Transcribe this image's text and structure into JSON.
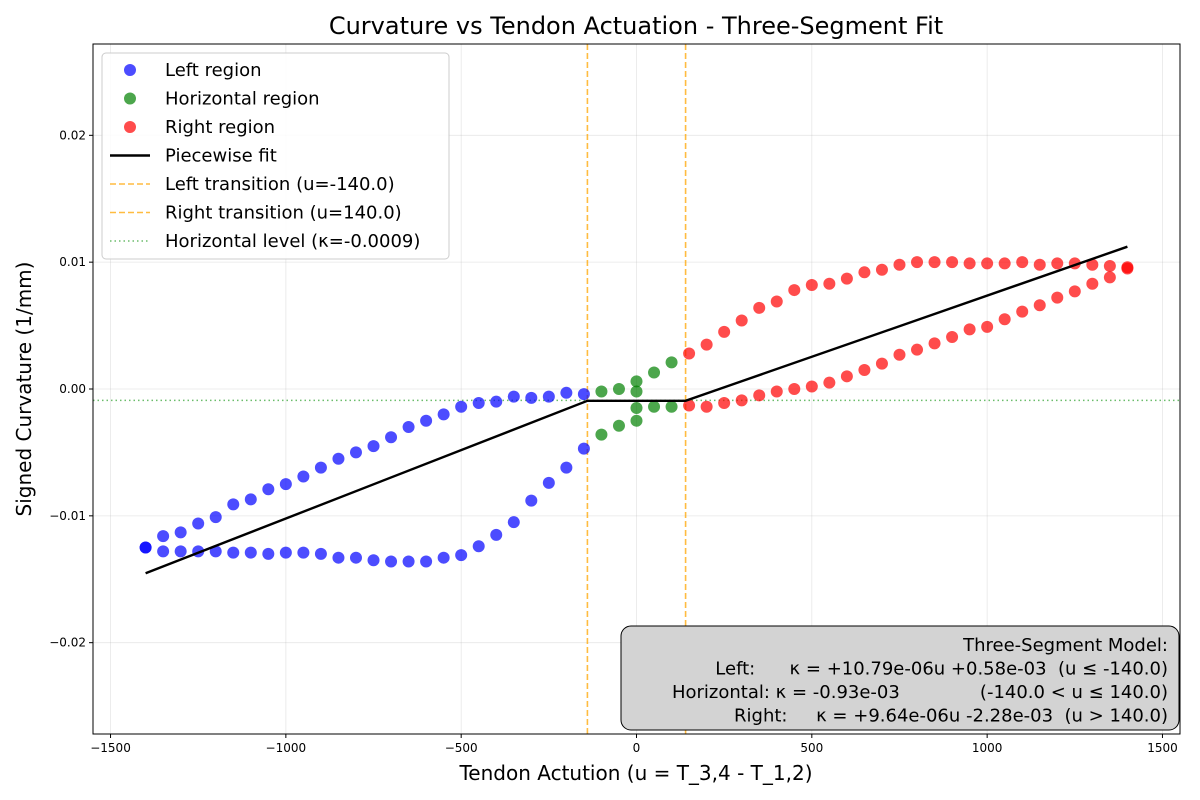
{
  "chart_data": {
    "type": "scatter",
    "title": "Curvature vs Tendon Actuation - Three-Segment Fit",
    "xlabel": "Tendon Actution (u = T_3,4 - T_1,2)",
    "ylabel": "Signed Curvature (1/mm)",
    "xlim": [
      -1550,
      1550
    ],
    "ylim": [
      -0.0272,
      0.0272
    ],
    "x_ticks": [
      -1500,
      -1000,
      -500,
      0,
      500,
      1000,
      1500
    ],
    "x_tick_labels": [
      "−1500",
      "−1000",
      "−500",
      "0",
      "500",
      "1000",
      "1500"
    ],
    "y_ticks": [
      -0.02,
      -0.01,
      0.0,
      0.01,
      0.02
    ],
    "y_tick_labels": [
      "−0.02",
      "−0.01",
      "0.00",
      "0.01",
      "0.02"
    ],
    "grid": true,
    "legend_position": "top-left",
    "series": [
      {
        "name": "Left region",
        "color": "#0000ff",
        "points": [
          [
            -1400,
            -0.0125
          ],
          [
            -1350,
            -0.0116
          ],
          [
            -1300,
            -0.0113
          ],
          [
            -1250,
            -0.0106
          ],
          [
            -1200,
            -0.0101
          ],
          [
            -1150,
            -0.0091
          ],
          [
            -1100,
            -0.0087
          ],
          [
            -1050,
            -0.0079
          ],
          [
            -1000,
            -0.0075
          ],
          [
            -950,
            -0.0069
          ],
          [
            -900,
            -0.0062
          ],
          [
            -850,
            -0.0055
          ],
          [
            -800,
            -0.005
          ],
          [
            -750,
            -0.0045
          ],
          [
            -700,
            -0.0038
          ],
          [
            -650,
            -0.003
          ],
          [
            -600,
            -0.0025
          ],
          [
            -550,
            -0.002
          ],
          [
            -500,
            -0.0014
          ],
          [
            -450,
            -0.0011
          ],
          [
            -400,
            -0.001
          ],
          [
            -350,
            -0.0006
          ],
          [
            -300,
            -0.0007
          ],
          [
            -250,
            -0.0006
          ],
          [
            -200,
            -0.0003
          ],
          [
            -150,
            -0.0004
          ],
          [
            -1400,
            -0.0125
          ],
          [
            -1350,
            -0.0128
          ],
          [
            -1300,
            -0.0128
          ],
          [
            -1250,
            -0.0128
          ],
          [
            -1200,
            -0.0128
          ],
          [
            -1150,
            -0.0129
          ],
          [
            -1100,
            -0.0129
          ],
          [
            -1050,
            -0.013
          ],
          [
            -1000,
            -0.0129
          ],
          [
            -950,
            -0.0129
          ],
          [
            -900,
            -0.013
          ],
          [
            -850,
            -0.0133
          ],
          [
            -800,
            -0.0133
          ],
          [
            -750,
            -0.0135
          ],
          [
            -700,
            -0.0136
          ],
          [
            -650,
            -0.0136
          ],
          [
            -600,
            -0.0136
          ],
          [
            -550,
            -0.0133
          ],
          [
            -500,
            -0.0131
          ],
          [
            -450,
            -0.0124
          ],
          [
            -400,
            -0.0115
          ],
          [
            -350,
            -0.0105
          ],
          [
            -300,
            -0.0088
          ],
          [
            -250,
            -0.0074
          ],
          [
            -200,
            -0.0062
          ],
          [
            -150,
            -0.0047
          ]
        ]
      },
      {
        "name": "Horizontal region",
        "color": "#008000",
        "points": [
          [
            -100,
            -0.0002
          ],
          [
            -50,
            0.0
          ],
          [
            0,
            0.0006
          ],
          [
            50,
            0.0013
          ],
          [
            100,
            0.0021
          ],
          [
            -100,
            -0.0036
          ],
          [
            -50,
            -0.0029
          ],
          [
            0,
            -0.0025
          ],
          [
            0,
            -0.0015
          ],
          [
            0,
            -0.0002
          ],
          [
            50,
            -0.0014
          ],
          [
            100,
            -0.0014
          ]
        ]
      },
      {
        "name": "Right region",
        "color": "#ff0000",
        "points": [
          [
            150,
            0.0028
          ],
          [
            200,
            0.0035
          ],
          [
            250,
            0.0045
          ],
          [
            300,
            0.0054
          ],
          [
            350,
            0.0064
          ],
          [
            400,
            0.0069
          ],
          [
            450,
            0.0078
          ],
          [
            500,
            0.0082
          ],
          [
            550,
            0.0083
          ],
          [
            600,
            0.0087
          ],
          [
            650,
            0.0092
          ],
          [
            700,
            0.0094
          ],
          [
            750,
            0.0098
          ],
          [
            800,
            0.01
          ],
          [
            850,
            0.01
          ],
          [
            900,
            0.01
          ],
          [
            950,
            0.0099
          ],
          [
            1000,
            0.0099
          ],
          [
            1050,
            0.0099
          ],
          [
            1100,
            0.01
          ],
          [
            1150,
            0.0098
          ],
          [
            1200,
            0.0099
          ],
          [
            1250,
            0.0099
          ],
          [
            1300,
            0.0098
          ],
          [
            1350,
            0.0097
          ],
          [
            1400,
            0.0096
          ],
          [
            150,
            -0.0013
          ],
          [
            200,
            -0.0014
          ],
          [
            250,
            -0.0011
          ],
          [
            300,
            -0.0009
          ],
          [
            350,
            -0.0005
          ],
          [
            400,
            -0.0002
          ],
          [
            450,
            0.0
          ],
          [
            500,
            0.0002
          ],
          [
            550,
            0.0005
          ],
          [
            600,
            0.001
          ],
          [
            650,
            0.0015
          ],
          [
            700,
            0.002
          ],
          [
            750,
            0.0027
          ],
          [
            800,
            0.0031
          ],
          [
            850,
            0.0036
          ],
          [
            900,
            0.0041
          ],
          [
            950,
            0.0047
          ],
          [
            1000,
            0.0049
          ],
          [
            1050,
            0.0055
          ],
          [
            1100,
            0.0061
          ],
          [
            1150,
            0.0066
          ],
          [
            1200,
            0.0072
          ],
          [
            1250,
            0.0077
          ],
          [
            1300,
            0.0083
          ],
          [
            1350,
            0.0088
          ],
          [
            1400,
            0.0095
          ]
        ]
      }
    ],
    "fit_line": {
      "name": "Piecewise fit",
      "color": "#000000",
      "points": [
        [
          -1400,
          -0.01453
        ],
        [
          -140,
          -0.00093
        ],
        [
          140,
          -0.00093
        ],
        [
          1400,
          0.01122
        ]
      ]
    },
    "vertical_lines": [
      {
        "name": "Left transition (u=-140.0)",
        "x": -140.0,
        "color": "#ffa500",
        "style": "dashed"
      },
      {
        "name": "Right transition (u=140.0)",
        "x": 140.0,
        "color": "#ffa500",
        "style": "dashed"
      }
    ],
    "horizontal_lines": [
      {
        "name": "Horizontal level (κ=-0.0009)",
        "y": -0.0009,
        "color": "#2ca02c",
        "style": "dotted"
      }
    ],
    "legend": [
      {
        "label": "Left region",
        "kind": "marker",
        "color": "#0000ff"
      },
      {
        "label": "Horizontal region",
        "kind": "marker",
        "color": "#008000"
      },
      {
        "label": "Right region",
        "kind": "marker",
        "color": "#ff0000"
      },
      {
        "label": "Piecewise fit",
        "kind": "solid",
        "color": "#000000"
      },
      {
        "label": "Left transition (u=-140.0)",
        "kind": "dashed",
        "color": "#ffa500"
      },
      {
        "label": "Right transition (u=140.0)",
        "kind": "dashed",
        "color": "#ffa500"
      },
      {
        "label": "Horizontal level (κ=-0.0009)",
        "kind": "dotted",
        "color": "#2ca02c"
      }
    ],
    "model_box": {
      "lines": [
        "Three-Segment Model:",
        "Left:      κ = +10.79e-06u +0.58e-03  (u ≤ -140.0)",
        "Horizontal: κ = -0.93e-03              (-140.0 < u ≤ 140.0)",
        "Right:     κ = +9.64e-06u -2.28e-03  (u > 140.0)"
      ]
    }
  }
}
